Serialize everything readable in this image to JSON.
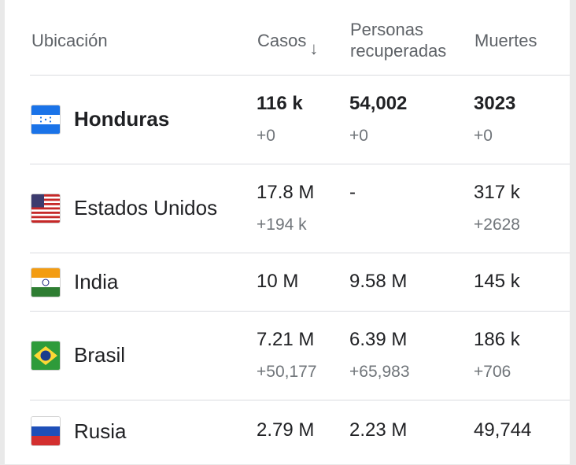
{
  "header": {
    "location": "Ubicación",
    "cases": "Casos",
    "recovered_line1": "Personas",
    "recovered_line2": "recuperadas",
    "deaths": "Muertes"
  },
  "rows": [
    {
      "country": "Honduras",
      "flag": "honduras-flag-icon",
      "cases": "116 k",
      "cases_delta": "+0",
      "recovered": "54,002",
      "recovered_delta": "+0",
      "deaths": "3023",
      "deaths_delta": "+0"
    },
    {
      "country": "Estados Unidos",
      "flag": "usa-flag-icon",
      "cases": "17.8 M",
      "cases_delta": "+194 k",
      "recovered": "-",
      "recovered_delta": "",
      "deaths": "317 k",
      "deaths_delta": "+2628"
    },
    {
      "country": "India",
      "flag": "india-flag-icon",
      "cases": "10 M",
      "cases_delta": "",
      "recovered": "9.58 M",
      "recovered_delta": "",
      "deaths": "145 k",
      "deaths_delta": ""
    },
    {
      "country": "Brasil",
      "flag": "brazil-flag-icon",
      "cases": "7.21 M",
      "cases_delta": "+50,177",
      "recovered": "6.39 M",
      "recovered_delta": "+65,983",
      "deaths": "186 k",
      "deaths_delta": "+706"
    },
    {
      "country": "Rusia",
      "flag": "russia-flag-icon",
      "cases": "2.79 M",
      "cases_delta": "",
      "recovered": "2.23 M",
      "recovered_delta": "",
      "deaths": "49,744",
      "deaths_delta": ""
    }
  ]
}
